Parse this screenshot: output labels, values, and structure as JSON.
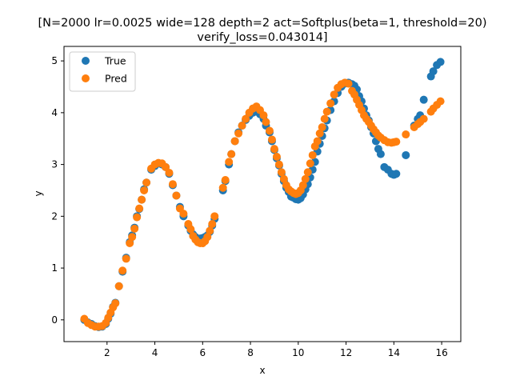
{
  "chart_data": {
    "type": "scatter",
    "title_lines": [
      "[N=2000 lr=0.0025 wide=128 depth=2 act=Softplus(beta=1, threshold=20)",
      "verify_loss=0.043014]"
    ],
    "xlabel": "x",
    "ylabel": "y",
    "xlim": [
      0.2,
      16.8
    ],
    "ylim": [
      -0.42,
      5.28
    ],
    "x_ticks": [
      2,
      4,
      6,
      8,
      10,
      12,
      14,
      16
    ],
    "y_ticks": [
      0,
      1,
      2,
      3,
      4,
      5
    ],
    "grid": false,
    "legend_position": "top-left",
    "series": [
      {
        "name": "True",
        "color": "#1f77b4",
        "points": [
          [
            1.05,
            0.0
          ],
          [
            1.2,
            -0.05
          ],
          [
            1.35,
            -0.08
          ],
          [
            1.5,
            -0.12
          ],
          [
            1.65,
            -0.14
          ],
          [
            1.8,
            -0.13
          ],
          [
            1.95,
            -0.08
          ],
          [
            2.05,
            0.02
          ],
          [
            2.15,
            0.12
          ],
          [
            2.25,
            0.25
          ],
          [
            2.35,
            0.33
          ],
          [
            2.5,
            0.65
          ],
          [
            2.65,
            0.93
          ],
          [
            2.8,
            1.2
          ],
          [
            2.95,
            1.5
          ],
          [
            3.05,
            1.63
          ],
          [
            3.15,
            1.78
          ],
          [
            3.25,
            2.0
          ],
          [
            3.35,
            2.14
          ],
          [
            3.45,
            2.32
          ],
          [
            3.55,
            2.52
          ],
          [
            3.65,
            2.65
          ],
          [
            3.85,
            2.9
          ],
          [
            4.0,
            2.97
          ],
          [
            4.15,
            3.02
          ],
          [
            4.3,
            3.0
          ],
          [
            4.45,
            2.95
          ],
          [
            4.6,
            2.82
          ],
          [
            4.75,
            2.6
          ],
          [
            4.9,
            2.4
          ],
          [
            5.05,
            2.18
          ],
          [
            5.2,
            2.0
          ],
          [
            5.4,
            1.82
          ],
          [
            5.5,
            1.72
          ],
          [
            5.6,
            1.65
          ],
          [
            5.7,
            1.6
          ],
          [
            5.8,
            1.56
          ],
          [
            5.9,
            1.57
          ],
          [
            6.0,
            1.58
          ],
          [
            6.1,
            1.6
          ],
          [
            6.2,
            1.63
          ],
          [
            6.3,
            1.7
          ],
          [
            6.4,
            1.82
          ],
          [
            6.5,
            1.95
          ],
          [
            6.85,
            2.5
          ],
          [
            6.95,
            2.68
          ],
          [
            7.1,
            3.0
          ],
          [
            7.2,
            3.2
          ],
          [
            7.35,
            3.45
          ],
          [
            7.5,
            3.62
          ],
          [
            7.65,
            3.75
          ],
          [
            7.8,
            3.86
          ],
          [
            7.95,
            3.94
          ],
          [
            8.1,
            4.0
          ],
          [
            8.25,
            4.02
          ],
          [
            8.4,
            3.97
          ],
          [
            8.55,
            3.88
          ],
          [
            8.65,
            3.75
          ],
          [
            8.8,
            3.62
          ],
          [
            8.9,
            3.45
          ],
          [
            9.0,
            3.28
          ],
          [
            9.1,
            3.12
          ],
          [
            9.2,
            2.98
          ],
          [
            9.3,
            2.82
          ],
          [
            9.4,
            2.68
          ],
          [
            9.5,
            2.55
          ],
          [
            9.6,
            2.47
          ],
          [
            9.7,
            2.38
          ],
          [
            9.8,
            2.36
          ],
          [
            9.9,
            2.33
          ],
          [
            10.0,
            2.32
          ],
          [
            10.1,
            2.35
          ],
          [
            10.2,
            2.42
          ],
          [
            10.3,
            2.52
          ],
          [
            10.4,
            2.62
          ],
          [
            10.5,
            2.75
          ],
          [
            10.6,
            2.9
          ],
          [
            10.7,
            3.05
          ],
          [
            10.8,
            3.25
          ],
          [
            10.9,
            3.4
          ],
          [
            11.0,
            3.55
          ],
          [
            11.1,
            3.7
          ],
          [
            11.2,
            3.85
          ],
          [
            11.35,
            4.05
          ],
          [
            11.5,
            4.22
          ],
          [
            11.65,
            4.38
          ],
          [
            11.8,
            4.5
          ],
          [
            11.95,
            4.56
          ],
          [
            12.1,
            4.58
          ],
          [
            12.25,
            4.55
          ],
          [
            12.35,
            4.52
          ],
          [
            12.45,
            4.45
          ],
          [
            12.55,
            4.32
          ],
          [
            12.65,
            4.22
          ],
          [
            12.75,
            4.08
          ],
          [
            12.85,
            3.95
          ],
          [
            12.95,
            3.85
          ],
          [
            13.05,
            3.72
          ],
          [
            13.15,
            3.6
          ],
          [
            13.25,
            3.45
          ],
          [
            13.35,
            3.3
          ],
          [
            13.45,
            3.2
          ],
          [
            13.6,
            2.95
          ],
          [
            13.75,
            2.9
          ],
          [
            13.9,
            2.82
          ],
          [
            14.0,
            2.8
          ],
          [
            14.1,
            2.82
          ],
          [
            14.5,
            3.18
          ],
          [
            14.85,
            3.75
          ],
          [
            15.0,
            3.88
          ],
          [
            15.1,
            3.95
          ],
          [
            15.25,
            4.25
          ],
          [
            15.55,
            4.7
          ],
          [
            15.65,
            4.8
          ],
          [
            15.8,
            4.92
          ],
          [
            15.95,
            4.98
          ]
        ]
      },
      {
        "name": "Pred",
        "color": "#ff7f0e",
        "points": [
          [
            1.05,
            0.02
          ],
          [
            1.2,
            -0.06
          ],
          [
            1.35,
            -0.1
          ],
          [
            1.5,
            -0.13
          ],
          [
            1.65,
            -0.13
          ],
          [
            1.8,
            -0.12
          ],
          [
            1.95,
            -0.06
          ],
          [
            2.05,
            0.04
          ],
          [
            2.15,
            0.14
          ],
          [
            2.25,
            0.24
          ],
          [
            2.35,
            0.32
          ],
          [
            2.5,
            0.65
          ],
          [
            2.65,
            0.95
          ],
          [
            2.8,
            1.18
          ],
          [
            2.95,
            1.48
          ],
          [
            3.05,
            1.6
          ],
          [
            3.15,
            1.76
          ],
          [
            3.25,
            1.98
          ],
          [
            3.35,
            2.15
          ],
          [
            3.45,
            2.32
          ],
          [
            3.55,
            2.5
          ],
          [
            3.65,
            2.65
          ],
          [
            3.85,
            2.92
          ],
          [
            4.0,
            3.0
          ],
          [
            4.15,
            3.03
          ],
          [
            4.3,
            3.02
          ],
          [
            4.45,
            2.95
          ],
          [
            4.6,
            2.84
          ],
          [
            4.75,
            2.62
          ],
          [
            4.9,
            2.4
          ],
          [
            5.05,
            2.15
          ],
          [
            5.2,
            2.05
          ],
          [
            5.4,
            1.85
          ],
          [
            5.5,
            1.75
          ],
          [
            5.6,
            1.62
          ],
          [
            5.7,
            1.55
          ],
          [
            5.8,
            1.5
          ],
          [
            5.9,
            1.48
          ],
          [
            6.0,
            1.48
          ],
          [
            6.1,
            1.52
          ],
          [
            6.2,
            1.6
          ],
          [
            6.3,
            1.72
          ],
          [
            6.4,
            1.85
          ],
          [
            6.5,
            2.0
          ],
          [
            6.85,
            2.55
          ],
          [
            6.95,
            2.7
          ],
          [
            7.1,
            3.05
          ],
          [
            7.2,
            3.2
          ],
          [
            7.35,
            3.45
          ],
          [
            7.5,
            3.6
          ],
          [
            7.65,
            3.75
          ],
          [
            7.8,
            3.88
          ],
          [
            7.95,
            4.0
          ],
          [
            8.1,
            4.08
          ],
          [
            8.25,
            4.12
          ],
          [
            8.4,
            4.05
          ],
          [
            8.55,
            3.95
          ],
          [
            8.65,
            3.82
          ],
          [
            8.8,
            3.65
          ],
          [
            8.9,
            3.48
          ],
          [
            9.0,
            3.3
          ],
          [
            9.1,
            3.15
          ],
          [
            9.2,
            3.0
          ],
          [
            9.3,
            2.85
          ],
          [
            9.4,
            2.72
          ],
          [
            9.5,
            2.6
          ],
          [
            9.6,
            2.52
          ],
          [
            9.7,
            2.48
          ],
          [
            9.8,
            2.45
          ],
          [
            9.9,
            2.43
          ],
          [
            10.0,
            2.45
          ],
          [
            10.1,
            2.5
          ],
          [
            10.2,
            2.6
          ],
          [
            10.3,
            2.72
          ],
          [
            10.4,
            2.85
          ],
          [
            10.5,
            3.02
          ],
          [
            10.6,
            3.18
          ],
          [
            10.7,
            3.35
          ],
          [
            10.8,
            3.45
          ],
          [
            10.9,
            3.6
          ],
          [
            11.0,
            3.72
          ],
          [
            11.1,
            3.88
          ],
          [
            11.2,
            4.02
          ],
          [
            11.35,
            4.18
          ],
          [
            11.5,
            4.35
          ],
          [
            11.65,
            4.48
          ],
          [
            11.8,
            4.55
          ],
          [
            11.95,
            4.58
          ],
          [
            12.1,
            4.56
          ],
          [
            12.25,
            4.42
          ],
          [
            12.35,
            4.35
          ],
          [
            12.45,
            4.25
          ],
          [
            12.55,
            4.15
          ],
          [
            12.65,
            4.05
          ],
          [
            12.75,
            3.95
          ],
          [
            12.85,
            3.88
          ],
          [
            12.95,
            3.82
          ],
          [
            13.05,
            3.75
          ],
          [
            13.15,
            3.68
          ],
          [
            13.25,
            3.62
          ],
          [
            13.35,
            3.56
          ],
          [
            13.45,
            3.52
          ],
          [
            13.6,
            3.47
          ],
          [
            13.75,
            3.43
          ],
          [
            13.9,
            3.42
          ],
          [
            14.0,
            3.43
          ],
          [
            14.1,
            3.44
          ],
          [
            14.5,
            3.58
          ],
          [
            14.85,
            3.72
          ],
          [
            15.0,
            3.78
          ],
          [
            15.1,
            3.82
          ],
          [
            15.25,
            3.88
          ],
          [
            15.55,
            4.02
          ],
          [
            15.65,
            4.08
          ],
          [
            15.8,
            4.15
          ],
          [
            15.95,
            4.22
          ]
        ]
      }
    ]
  }
}
